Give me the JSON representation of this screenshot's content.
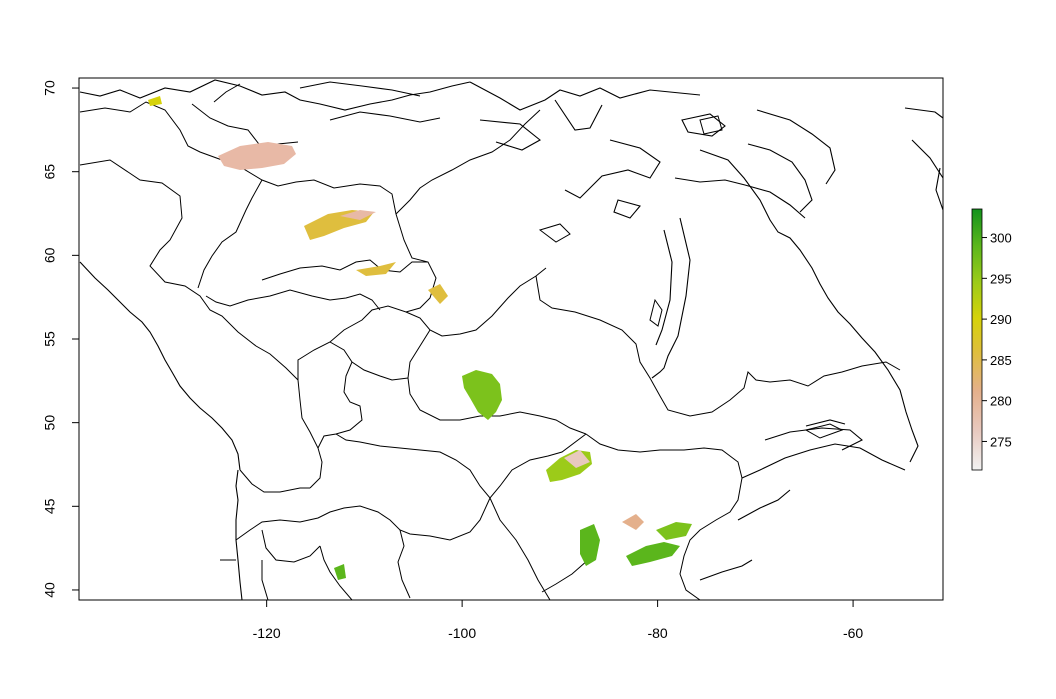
{
  "map": {
    "x_axis": {
      "ticks": [
        -120,
        -100,
        -80,
        -60
      ],
      "range": [
        -139.2,
        -50.8
      ]
    },
    "y_axis": {
      "ticks": [
        40,
        45,
        50,
        55,
        60,
        65,
        70
      ],
      "range": [
        39.4,
        70.6
      ]
    },
    "region": "Canada and northern United States",
    "boundaries": "watershed / basin outlines with coastlines",
    "raster_colors": [
      "#f2f2f2",
      "#e8c9bf",
      "#e4b08c",
      "#dfbe3e",
      "#d6d20a",
      "#9ccb19",
      "#5bb61c",
      "#13921d"
    ]
  },
  "legend": {
    "ticks": [
      275,
      280,
      285,
      290,
      295,
      300
    ],
    "range": [
      271.5,
      303.5
    ],
    "gradient": [
      "#f2f2f2",
      "#e8c9bf",
      "#e4b08c",
      "#dfbe3e",
      "#d6d20a",
      "#9ccb19",
      "#5bb61c",
      "#13921d"
    ]
  }
}
